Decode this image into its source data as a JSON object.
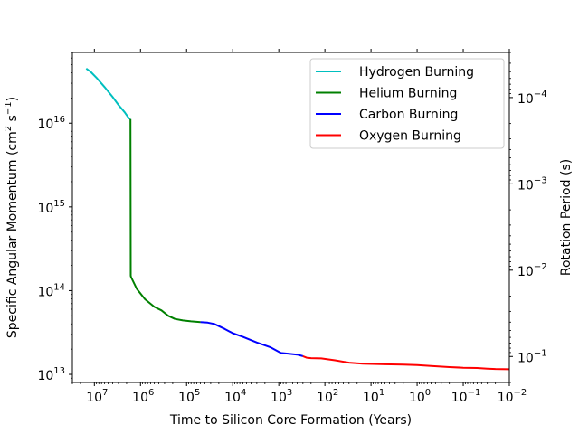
{
  "chart_data": {
    "type": "line",
    "title": "",
    "xlabel": "Time to Silicon Core Formation (Years)",
    "ylabel": "Specific Angular Momentum (cm² s⁻¹)",
    "ylabel_parts": {
      "main": "Specific Angular Momentum (cm",
      "sup1": "2",
      "mid": " s",
      "sup2": "−1",
      "end": ")"
    },
    "y2label": "Rotation Period (s)",
    "x_scale": "log",
    "x_reversed": true,
    "xlim": [
      30000000,
      0.01
    ],
    "y_scale": "log",
    "ylim": [
      8000000000000.0,
      7e+16
    ],
    "y2_scale": "log",
    "y2lim": [
      0.2,
      3e-05
    ],
    "x_ticks": [
      {
        "value": 10000000,
        "base": "10",
        "exp": "7"
      },
      {
        "value": 1000000,
        "base": "10",
        "exp": "6"
      },
      {
        "value": 100000,
        "base": "10",
        "exp": "5"
      },
      {
        "value": 10000,
        "base": "10",
        "exp": "4"
      },
      {
        "value": 1000,
        "base": "10",
        "exp": "3"
      },
      {
        "value": 100,
        "base": "10",
        "exp": "2"
      },
      {
        "value": 10,
        "base": "10",
        "exp": "1"
      },
      {
        "value": 1,
        "base": "10",
        "exp": "0"
      },
      {
        "value": 0.1,
        "base": "10",
        "exp": "−1"
      },
      {
        "value": 0.01,
        "base": "10",
        "exp": "−2"
      }
    ],
    "y_ticks": [
      {
        "value": 10000000000000.0,
        "base": "10",
        "exp": "13"
      },
      {
        "value": 100000000000000.0,
        "base": "10",
        "exp": "14"
      },
      {
        "value": 1000000000000000.0,
        "base": "10",
        "exp": "15"
      },
      {
        "value": 1e+16,
        "base": "10",
        "exp": "16"
      }
    ],
    "y2_ticks": [
      {
        "value": 0.1,
        "base": "10",
        "exp": "−1"
      },
      {
        "value": 0.01,
        "base": "10",
        "exp": "−2"
      },
      {
        "value": 0.001,
        "base": "10",
        "exp": "−3"
      },
      {
        "value": 0.0001,
        "base": "10",
        "exp": "−4"
      }
    ],
    "legend_position": "top-right",
    "series": [
      {
        "name": "Hydrogen Burning",
        "color": "#00bfbf",
        "x": [
          15000000,
          12000000,
          9000000,
          6000000,
          4000000,
          3000000,
          2200000,
          1800000,
          1650000
        ],
        "y": [
          4.5e+16,
          4.1e+16,
          3.5e+16,
          2.7e+16,
          2.05e+16,
          1.65e+16,
          1.35e+16,
          1.15e+16,
          1.12e+16
        ]
      },
      {
        "name": "Helium Burning",
        "color": "#008000",
        "x": [
          1650000,
          1630000,
          1600000,
          1200000,
          800000,
          500000,
          350000,
          250000,
          180000,
          120000,
          80000,
          50000
        ],
        "y": [
          1.12e+16,
          150000000000000.0,
          145000000000000.0,
          105000000000000.0,
          79000000000000.0,
          64000000000000.0,
          58000000000000.0,
          50000000000000.0,
          46000000000000.0,
          44000000000000.0,
          43000000000000.0,
          42000000000000.0
        ]
      },
      {
        "name": "Carbon Burning",
        "color": "#0000ff",
        "x": [
          50000,
          35000,
          25000,
          15000,
          10000,
          6000,
          3000,
          1500,
          900,
          600,
          400,
          300
        ],
        "y": [
          42000000000000.0,
          41500000000000.0,
          40000000000000.0,
          35000000000000.0,
          31000000000000.0,
          28000000000000.0,
          24000000000000.0,
          21000000000000.0,
          18000000000000.0,
          17600000000000.0,
          17200000000000.0,
          16500000000000.0
        ]
      },
      {
        "name": "Oxygen Burning",
        "color": "#ff0000",
        "x": [
          300,
          250,
          200,
          120,
          60,
          30,
          15,
          5,
          2,
          1,
          0.5,
          0.2,
          0.1,
          0.05,
          0.03,
          0.02,
          0.01
        ],
        "y": [
          16500000000000.0,
          15800000000000.0,
          15600000000000.0,
          15500000000000.0,
          14700000000000.0,
          13800000000000.0,
          13400000000000.0,
          13200000000000.0,
          13100000000000.0,
          12900000000000.0,
          12600000000000.0,
          12200000000000.0,
          12000000000000.0,
          11900000000000.0,
          11700000000000.0,
          11600000000000.0,
          11500000000000.0
        ]
      }
    ]
  }
}
